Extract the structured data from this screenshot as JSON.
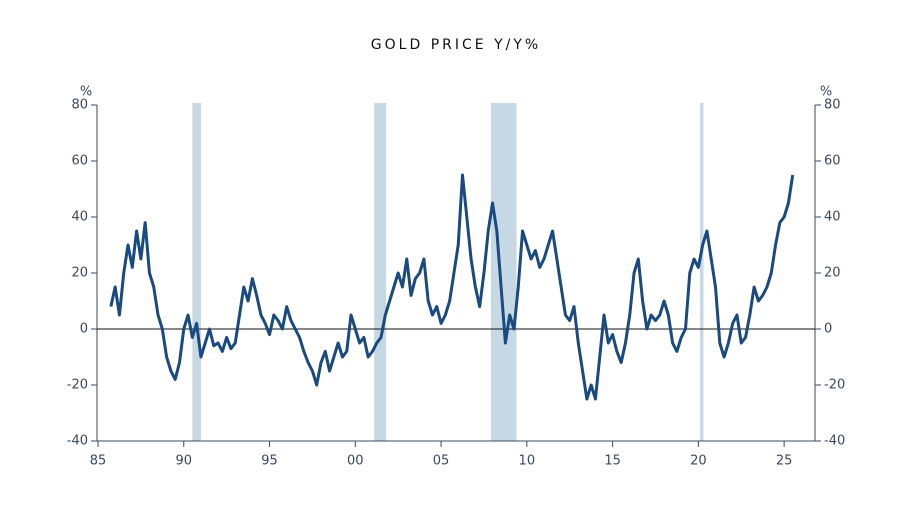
{
  "chart_data": {
    "type": "line",
    "title": "GOLD PRICE Y/Y%",
    "ylabel": "%",
    "y2label": "%",
    "x": [
      1985.75,
      1986,
      1986.25,
      1986.5,
      1986.75,
      1987,
      1987.25,
      1987.5,
      1987.75,
      1988,
      1988.25,
      1988.5,
      1988.75,
      1989,
      1989.25,
      1989.5,
      1989.75,
      1990,
      1990.25,
      1990.5,
      1990.75,
      1991,
      1991.25,
      1991.5,
      1991.75,
      1992,
      1992.25,
      1992.5,
      1992.75,
      1993,
      1993.25,
      1993.5,
      1993.75,
      1994,
      1994.25,
      1994.5,
      1994.75,
      1995,
      1995.25,
      1995.5,
      1995.75,
      1996,
      1996.25,
      1996.5,
      1996.75,
      1997,
      1997.25,
      1997.5,
      1997.75,
      1998,
      1998.25,
      1998.5,
      1998.75,
      1999,
      1999.25,
      1999.5,
      1999.75,
      2000,
      2000.25,
      2000.5,
      2000.75,
      2001,
      2001.25,
      2001.5,
      2001.75,
      2002,
      2002.25,
      2002.5,
      2002.75,
      2003,
      2003.25,
      2003.5,
      2003.75,
      2004,
      2004.25,
      2004.5,
      2004.75,
      2005,
      2005.25,
      2005.5,
      2005.75,
      2006,
      2006.25,
      2006.5,
      2006.75,
      2007,
      2007.25,
      2007.5,
      2007.75,
      2008,
      2008.25,
      2008.5,
      2008.75,
      2009,
      2009.25,
      2009.5,
      2009.75,
      2010,
      2010.25,
      2010.5,
      2010.75,
      2011,
      2011.25,
      2011.5,
      2011.75,
      2012,
      2012.25,
      2012.5,
      2012.75,
      2013,
      2013.25,
      2013.5,
      2013.75,
      2014,
      2014.25,
      2014.5,
      2014.75,
      2015,
      2015.25,
      2015.5,
      2015.75,
      2016,
      2016.25,
      2016.5,
      2016.75,
      2017,
      2017.25,
      2017.5,
      2017.75,
      2018,
      2018.25,
      2018.5,
      2018.75,
      2019,
      2019.25,
      2019.5,
      2019.75,
      2020,
      2020.25,
      2020.5,
      2020.75,
      2021,
      2021.25,
      2021.5,
      2021.75,
      2022,
      2022.25,
      2022.5,
      2022.75,
      2023,
      2023.25,
      2023.5,
      2023.75,
      2024,
      2024.25,
      2024.5,
      2024.75,
      2025,
      2025.25,
      2025.5
    ],
    "series": [
      {
        "color": "#1a4a80",
        "values": [
          8,
          15,
          5,
          20,
          30,
          22,
          35,
          25,
          38,
          20,
          15,
          5,
          0,
          -10,
          -15,
          -18,
          -12,
          0,
          5,
          -3,
          2,
          -10,
          -5,
          0,
          -6,
          -5,
          -8,
          -3,
          -7,
          -5,
          5,
          15,
          10,
          18,
          12,
          5,
          2,
          -2,
          5,
          3,
          0,
          8,
          3,
          0,
          -3,
          -8,
          -12,
          -15,
          -20,
          -12,
          -8,
          -15,
          -10,
          -5,
          -10,
          -8,
          5,
          0,
          -5,
          -3,
          -10,
          -8,
          -5,
          -3,
          5,
          10,
          15,
          20,
          15,
          25,
          12,
          18,
          20,
          25,
          10,
          5,
          8,
          2,
          5,
          10,
          20,
          30,
          55,
          40,
          25,
          15,
          8,
          20,
          35,
          45,
          35,
          15,
          -5,
          5,
          0,
          15,
          35,
          30,
          25,
          28,
          22,
          25,
          30,
          35,
          25,
          15,
          5,
          3,
          8,
          -5,
          -15,
          -25,
          -20,
          -25,
          -10,
          5,
          -5,
          -2,
          -8,
          -12,
          -5,
          5,
          20,
          25,
          10,
          0,
          5,
          3,
          5,
          10,
          5,
          -5,
          -8,
          -3,
          0,
          20,
          25,
          22,
          30,
          35,
          25,
          15,
          -5,
          -10,
          -5,
          2,
          5,
          -5,
          -3,
          5,
          15,
          10,
          12,
          15,
          20,
          30,
          38,
          40,
          45,
          55
        ]
      }
    ],
    "shaded_periods": [
      [
        1990.5,
        1991.0
      ],
      [
        2001.1,
        2001.8
      ],
      [
        2007.9,
        2009.4
      ],
      [
        2020.1,
        2020.3
      ]
    ],
    "shade_color": "#c5d8e3",
    "xlim": [
      1985,
      2026.8
    ],
    "xticks": [
      {
        "value": 1985,
        "label": "85"
      },
      {
        "value": 1990,
        "label": "90"
      },
      {
        "value": 1995,
        "label": "95"
      },
      {
        "value": 2000,
        "label": "00"
      },
      {
        "value": 2005,
        "label": "05"
      },
      {
        "value": 2010,
        "label": "10"
      },
      {
        "value": 2015,
        "label": "15"
      },
      {
        "value": 2020,
        "label": "20"
      },
      {
        "value": 2025,
        "label": "25"
      }
    ],
    "ylim": [
      -40,
      80
    ],
    "yticks": [
      -40,
      -20,
      0,
      20,
      40,
      60,
      80
    ],
    "y2lim": [
      -40,
      80
    ],
    "y2ticks": [
      -40,
      -20,
      0,
      20,
      40,
      60,
      80
    ]
  }
}
